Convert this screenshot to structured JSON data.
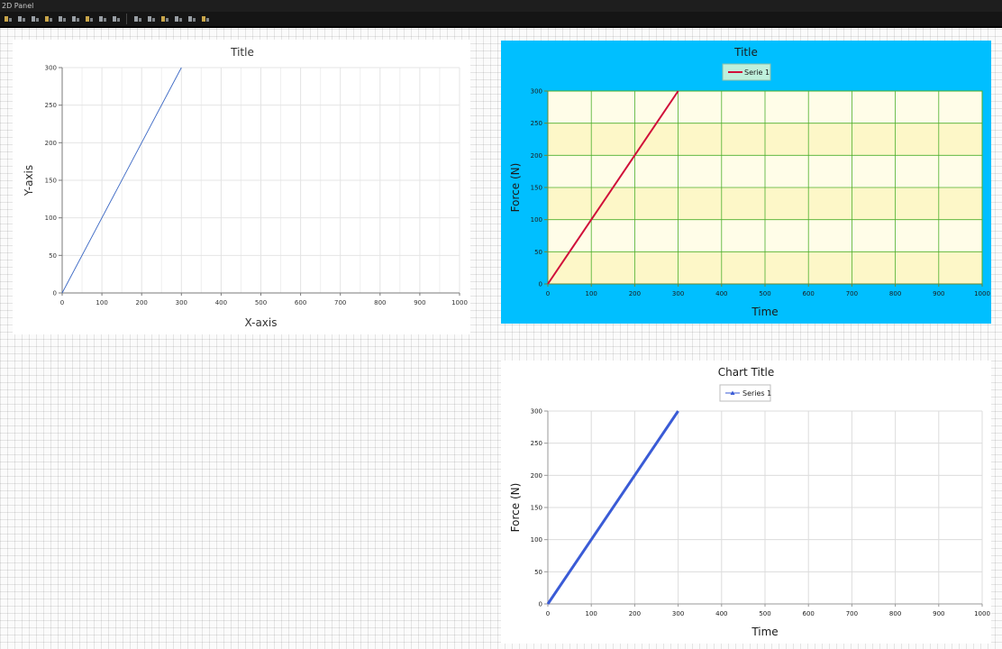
{
  "window": {
    "title": "2D Panel"
  },
  "toolbar": {
    "icons": [
      "layout-icon",
      "layout-icon",
      "layout-icon",
      "layout-icon",
      "align-left-icon",
      "align-center-icon",
      "align-right-icon",
      "distribute-icon",
      "bar-icon",
      "separator",
      "bars-icon",
      "distribute-vertical-icon",
      "nodes-icon",
      "grid-icon",
      "tools-icon",
      "tools-icon"
    ]
  },
  "charts": [
    {
      "id": "chart1",
      "title": "Title",
      "xlabel": "X-axis",
      "ylabel": "Y-axis",
      "legend": null,
      "colors": {
        "panel_bg": "#ffffff",
        "plot_bg": "#ffffff",
        "grid": "#e4e4e4",
        "axis": "#7a7a7a",
        "line": "#3b68c4",
        "text": "#333333"
      }
    },
    {
      "id": "chart2",
      "title": "Title",
      "xlabel": "Time",
      "ylabel": "Force (N)",
      "legend": "Serie 1",
      "colors": {
        "panel_bg": "#00bfff",
        "plot_bg": "#fffde8",
        "band": "#fdf7c8",
        "grid": "#4caf2c",
        "axis": "#6a8a30",
        "line": "#d0103a",
        "text": "#1a1a1a",
        "legend_bg": "#bff0dc"
      }
    },
    {
      "id": "chart3",
      "title": "Chart Title",
      "xlabel": "Time",
      "ylabel": "Force (N)",
      "legend": "Series 1",
      "colors": {
        "panel_bg": "#ffffff",
        "plot_bg": "#ffffff",
        "grid": "#dcdcdc",
        "axis": "#9a9a9a",
        "line": "#3a5bd6",
        "text": "#1a1a1a"
      }
    }
  ],
  "chart_data": [
    {
      "type": "line",
      "title": "Title",
      "xlabel": "X-axis",
      "ylabel": "Y-axis",
      "xlim": [
        0,
        1000
      ],
      "ylim": [
        0,
        300
      ],
      "xticks": [
        0,
        100,
        200,
        300,
        400,
        500,
        600,
        700,
        800,
        900,
        1000
      ],
      "yticks": [
        0,
        50,
        100,
        150,
        200,
        250,
        300
      ],
      "grid": true,
      "series": [
        {
          "x": [
            0,
            300
          ],
          "y": [
            0,
            300
          ]
        }
      ]
    },
    {
      "type": "line",
      "title": "Title",
      "xlabel": "Time",
      "ylabel": "Force (N)",
      "xlim": [
        0,
        1000
      ],
      "ylim": [
        0,
        300
      ],
      "xticks": [
        0,
        100,
        200,
        300,
        400,
        500,
        600,
        700,
        800,
        900,
        1000
      ],
      "yticks": [
        0,
        50,
        100,
        150,
        200,
        250,
        300
      ],
      "grid": true,
      "legend_position": "top-center",
      "series": [
        {
          "name": "Serie 1",
          "x": [
            0,
            300
          ],
          "y": [
            0,
            300
          ]
        }
      ]
    },
    {
      "type": "line",
      "title": "Chart Title",
      "xlabel": "Time",
      "ylabel": "Force (N)",
      "xlim": [
        0,
        1000
      ],
      "ylim": [
        0,
        300
      ],
      "xticks": [
        0,
        100,
        200,
        300,
        400,
        500,
        600,
        700,
        800,
        900,
        1000
      ],
      "yticks": [
        0,
        50,
        100,
        150,
        200,
        250,
        300
      ],
      "grid": true,
      "legend_position": "top-center",
      "series": [
        {
          "name": "Series 1",
          "x": [
            0,
            300
          ],
          "y": [
            0,
            300
          ]
        }
      ]
    }
  ]
}
